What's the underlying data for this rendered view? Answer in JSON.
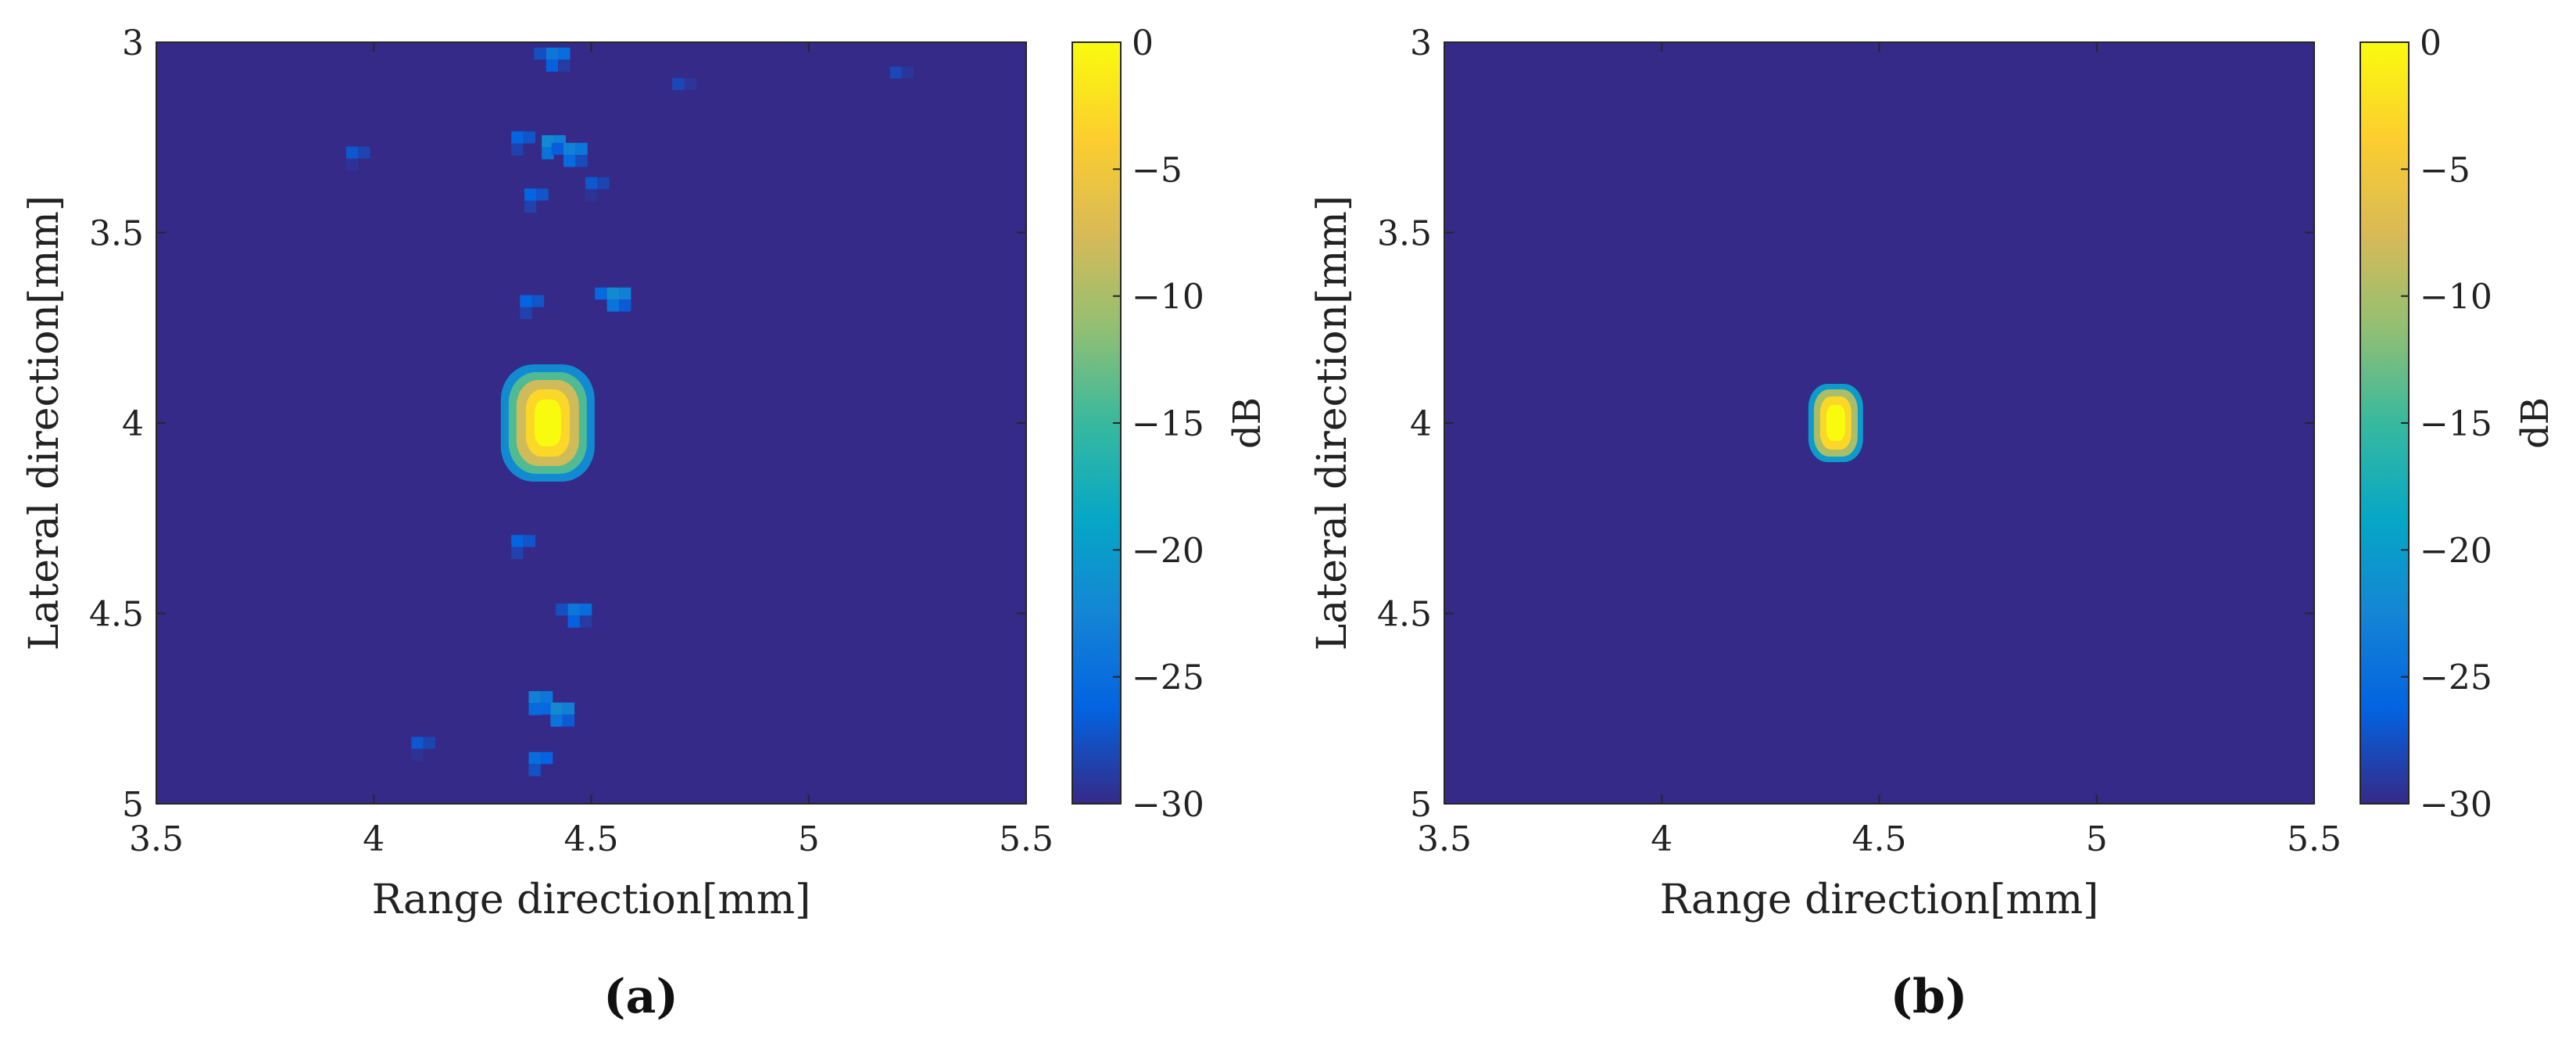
{
  "chart_data": [
    {
      "type": "heatmap",
      "panel_label": "(a)",
      "xlabel": "Range direction[mm]",
      "ylabel": "Lateral direction[mm]",
      "xlim": [
        3.5,
        5.5
      ],
      "ylim": [
        3,
        5
      ],
      "y_reversed": true,
      "xticks": [
        "3.5",
        "4",
        "4.5",
        "5",
        "5.5"
      ],
      "yticks": [
        "3",
        "3.5",
        "4",
        "4.5",
        "5"
      ],
      "colorbar": {
        "label": "dB",
        "range": [
          -30,
          0
        ],
        "ticks": [
          "0",
          "−5",
          "−10",
          "−15",
          "−20",
          "−25",
          "−30"
        ],
        "colormap": "parula"
      },
      "peak": {
        "x": 4.4,
        "y": 4.0,
        "value_db": 0
      },
      "background_db": -30,
      "scatter_blobs": [
        {
          "x": 4.41,
          "y": 3.03,
          "value_db": -24
        },
        {
          "x": 4.4,
          "y": 3.26,
          "value_db": -22
        },
        {
          "x": 4.45,
          "y": 3.28,
          "value_db": -23
        },
        {
          "x": 4.33,
          "y": 3.25,
          "value_db": -26
        },
        {
          "x": 3.95,
          "y": 3.29,
          "value_db": -27
        },
        {
          "x": 4.36,
          "y": 3.4,
          "value_db": -26
        },
        {
          "x": 4.5,
          "y": 3.37,
          "value_db": -27
        },
        {
          "x": 4.35,
          "y": 3.68,
          "value_db": -26
        },
        {
          "x": 4.55,
          "y": 3.66,
          "value_db": -22
        },
        {
          "x": 4.33,
          "y": 4.31,
          "value_db": -26
        },
        {
          "x": 4.46,
          "y": 4.49,
          "value_db": -24
        },
        {
          "x": 4.37,
          "y": 4.72,
          "value_db": -23
        },
        {
          "x": 4.42,
          "y": 4.75,
          "value_db": -22
        },
        {
          "x": 4.37,
          "y": 4.88,
          "value_db": -25
        },
        {
          "x": 4.1,
          "y": 4.84,
          "value_db": -27
        },
        {
          "x": 4.7,
          "y": 3.11,
          "value_db": -28
        },
        {
          "x": 5.2,
          "y": 3.08,
          "value_db": -28
        }
      ]
    },
    {
      "type": "heatmap",
      "panel_label": "(b)",
      "xlabel": "Range direction[mm]",
      "ylabel": "Lateral direction[mm]",
      "xlim": [
        3.5,
        5.5
      ],
      "ylim": [
        3,
        5
      ],
      "y_reversed": true,
      "xticks": [
        "3.5",
        "4",
        "4.5",
        "5",
        "5.5"
      ],
      "yticks": [
        "3",
        "3.5",
        "4",
        "4.5",
        "5"
      ],
      "colorbar": {
        "label": "dB",
        "range": [
          -30,
          0
        ],
        "ticks": [
          "0",
          "−5",
          "−10",
          "−15",
          "−20",
          "−25",
          "−30"
        ],
        "colormap": "parula"
      },
      "peak": {
        "x": 4.4,
        "y": 4.0,
        "value_db": 0
      },
      "background_db": -30,
      "scatter_blobs": []
    }
  ],
  "colors": {
    "background": "#3b2fa0",
    "peak": "#f9f91c",
    "parula_stops": [
      "#352a87",
      "#0363e1",
      "#1485d4",
      "#06a7c6",
      "#38b99e",
      "#92bf73",
      "#d9ba56",
      "#fcce2e",
      "#f9fb0e"
    ]
  }
}
